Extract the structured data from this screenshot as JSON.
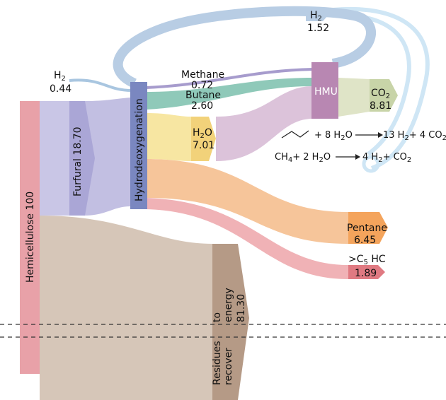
{
  "nodes": {
    "hemicellulose": {
      "name": "Hemicellulose",
      "value": "100",
      "color": "#e8a1a8"
    },
    "furfural": {
      "name": "Furfural",
      "value": "18.70",
      "color": "#aaa6d6"
    },
    "hdo": {
      "name": "Hydrodeoxygenation",
      "color": "#7a87c0"
    },
    "hmu": {
      "name": "HMU",
      "color": "#b887b2"
    },
    "co2": {
      "name": "CO",
      "sub": "2",
      "value": "8.81",
      "color": "#c8d4a8"
    },
    "h2o": {
      "name": "H",
      "sub": "2",
      "name_tail": "O",
      "value": "7.01",
      "color": "#f2d27a"
    },
    "pentane": {
      "name": "Pentane",
      "value": "6.45",
      "color": "#f4a45c"
    },
    "c5hc": {
      "name": ">C",
      "sub": "5",
      "name_tail": " HC",
      "value": "1.89",
      "color": "#e07a82"
    },
    "residues": {
      "name_line1": "Residues to",
      "name_line2": "energy",
      "name_line3": "recover",
      "value": "81.30",
      "color": "#b59a86"
    }
  },
  "labels": {
    "h2_in": {
      "name": "H",
      "sub": "2",
      "value": "0.44"
    },
    "h2_recycle": {
      "name": "H",
      "sub": "2",
      "value": "1.52"
    },
    "methane": {
      "name": "Methane",
      "value": "0.72"
    },
    "butane": {
      "name": "Butane",
      "value": "2.60"
    }
  },
  "equations": {
    "butane": {
      "lhs": "+ 8 H",
      "lhs_sub": "2",
      "lhs_tail": "O",
      "rhs": "13 H",
      "rhs_sub": "2",
      "rhs_tail": "+ 4 CO",
      "rhs_sub2": "2"
    },
    "methane": {
      "lhs": "CH",
      "lhs_sub": "4",
      "lhs_mid": "+ 2 H",
      "lhs_sub2": "2",
      "lhs_tail": "O",
      "rhs": "4 H",
      "rhs_sub": "2",
      "rhs_tail": "+ CO",
      "rhs_sub2": "2"
    }
  },
  "colors": {
    "hemi_to_furfural": "#c9c6e6",
    "hemi_to_residues": "#d6c6b8",
    "to_hdo": "#c2bfe2",
    "h2_flow": "#a9c6e0",
    "methane_flow": "#a79ccd",
    "butane_flow": "#8fc9b9",
    "hdo_to_h2o": "#f7e6a2",
    "hdo_to_pentane": "#f6c59a",
    "hdo_to_c5": "#f0b2b6",
    "to_hmu": "#dcc3da",
    "hmu_to_co2": "#dfe4c7",
    "recycle_h2": "#b8cde4",
    "light_recycle": "#cfe6f5"
  }
}
